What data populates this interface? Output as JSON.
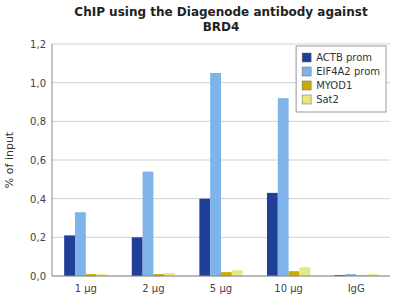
{
  "chart_data": {
    "type": "bar",
    "title": "ChIP using the Diagenode antibody against\nBRD4",
    "y_label": "% of input",
    "categories": [
      "1 μg",
      "2 μg",
      "5 μg",
      "10 μg",
      "IgG"
    ],
    "series": [
      {
        "name": "ACTB prom",
        "color": "#1F3F99",
        "values": [
          0.21,
          0.2,
          0.4,
          0.43,
          0.005
        ]
      },
      {
        "name": "EIF4A2 prom",
        "color": "#7EB4EA",
        "values": [
          0.33,
          0.54,
          1.05,
          0.92,
          0.01
        ]
      },
      {
        "name": "MYOD1",
        "color": "#CCAA00",
        "values": [
          0.01,
          0.01,
          0.02,
          0.025,
          0.003
        ]
      },
      {
        "name": "Sat2",
        "color": "#E8E880",
        "values": [
          0.01,
          0.015,
          0.03,
          0.045,
          0.01
        ]
      }
    ],
    "ylim": [
      0,
      1.2
    ],
    "yticks": [
      {
        "value": 0.0,
        "label": "0,0"
      },
      {
        "value": 0.2,
        "label": "0,2"
      },
      {
        "value": 0.4,
        "label": "0,4"
      },
      {
        "value": 0.6,
        "label": "0,6"
      },
      {
        "value": 0.8,
        "label": "0,8"
      },
      {
        "value": 1.0,
        "label": "1,0"
      },
      {
        "value": 1.2,
        "label": "1,2"
      }
    ],
    "grid": true,
    "legend": "upper right"
  }
}
